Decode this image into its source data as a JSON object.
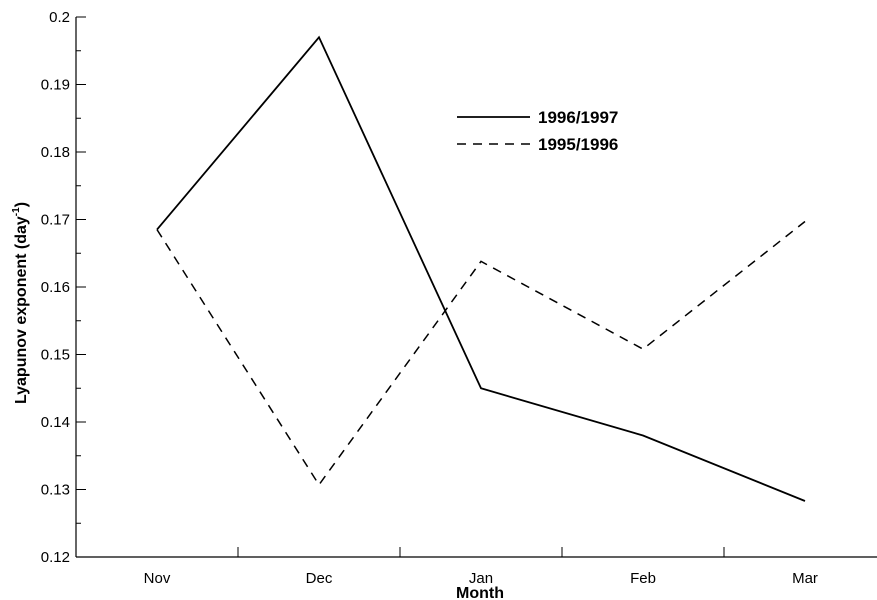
{
  "chart_data": {
    "type": "line",
    "categories": [
      "Nov",
      "Dec",
      "Jan",
      "Feb",
      "Mar"
    ],
    "xlabel": "Month",
    "ylabel": "Lyapunov exponent (day",
    "ylabel_sup": "-1",
    "ylabel_close": ")",
    "ylim": [
      0.12,
      0.2
    ],
    "yticks": [
      "0.12",
      "0.13",
      "0.14",
      "0.15",
      "0.16",
      "0.17",
      "0.18",
      "0.19",
      "0.2"
    ],
    "grid": false,
    "legend_position": "top-right",
    "series": [
      {
        "name": "1996/1997",
        "style": "solid",
        "color": "#000000",
        "values": [
          0.1685,
          0.197,
          0.145,
          0.138,
          0.1283
        ]
      },
      {
        "name": "1995/1996",
        "style": "dashed",
        "color": "#000000",
        "values": [
          0.1685,
          0.1307,
          0.1638,
          0.1508,
          0.1697
        ]
      }
    ]
  }
}
